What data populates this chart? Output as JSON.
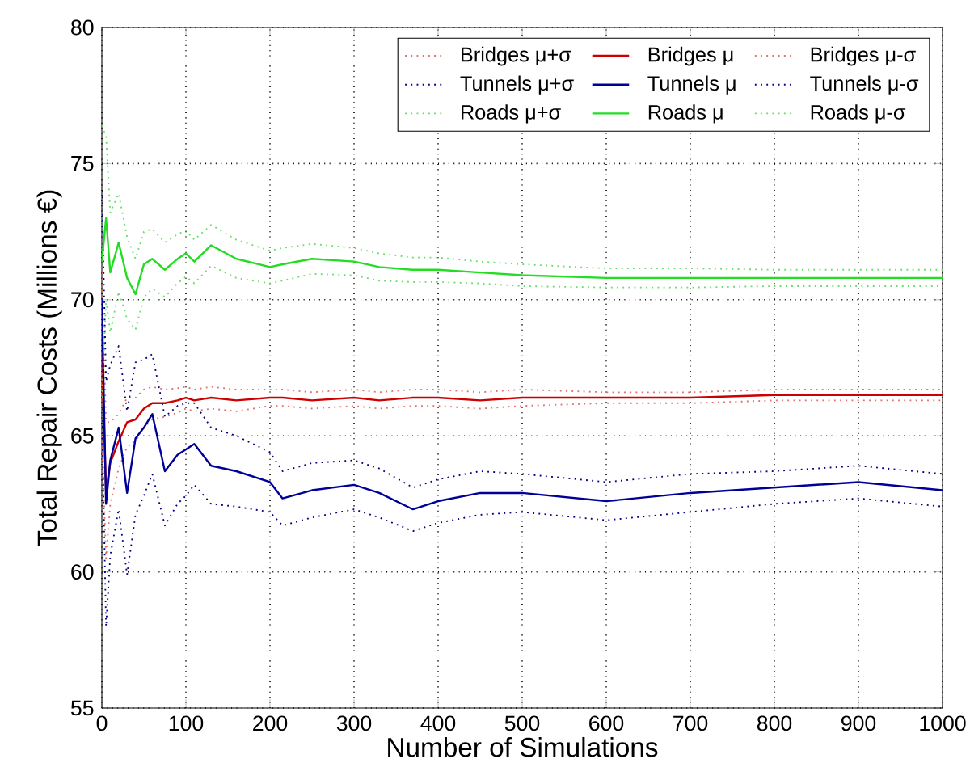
{
  "chart_data": {
    "type": "line",
    "xlabel": "Number of Simulations",
    "ylabel": "Total Repair Costs (Millions €)",
    "x": [
      0,
      5,
      10,
      20,
      30,
      40,
      50,
      60,
      75,
      90,
      100,
      110,
      130,
      160,
      200,
      215,
      250,
      300,
      330,
      370,
      400,
      450,
      500,
      600,
      700,
      800,
      900,
      1000
    ],
    "xlim": [
      0,
      1000
    ],
    "ylim": [
      55,
      80
    ],
    "xticks": [
      0,
      100,
      200,
      300,
      400,
      500,
      600,
      700,
      800,
      900,
      1000
    ],
    "yticks": [
      55,
      60,
      65,
      70,
      75,
      80
    ],
    "grid": true,
    "legend": "top right",
    "marker": "none",
    "series": [
      {
        "name": "Bridges μ+σ",
        "color": "#e07070",
        "line_style": "dotted",
        "values": [
          71,
          65.5,
          65.5,
          65.8,
          66.4,
          66.4,
          66.7,
          66.8,
          66.7,
          66.75,
          66.8,
          66.7,
          66.8,
          66.7,
          66.7,
          66.7,
          66.6,
          66.7,
          66.6,
          66.7,
          66.7,
          66.6,
          66.7,
          66.6,
          66.6,
          66.7,
          66.7,
          66.7
        ]
      },
      {
        "name": "Bridges μ",
        "color": "#cc0000",
        "line_style": "solid",
        "values": [
          68,
          63,
          64,
          64.8,
          65.5,
          65.6,
          66,
          66.2,
          66.2,
          66.3,
          66.4,
          66.3,
          66.4,
          66.3,
          66.4,
          66.4,
          66.3,
          66.4,
          66.3,
          66.4,
          66.4,
          66.3,
          66.4,
          66.4,
          66.4,
          66.5,
          66.5,
          66.5
        ]
      },
      {
        "name": "Bridges μ-σ",
        "color": "#e07070",
        "line_style": "dotted",
        "values": [
          65,
          60.5,
          62.5,
          63.8,
          64.6,
          64.8,
          65.3,
          65.6,
          65.7,
          65.85,
          66,
          65.9,
          66,
          65.9,
          66.1,
          66.1,
          66,
          66.1,
          66,
          66.1,
          66.1,
          66,
          66.1,
          66.2,
          66.2,
          66.3,
          66.3,
          66.3
        ]
      },
      {
        "name": "Tunnels μ+σ",
        "color": "#000080",
        "line_style": "dotted",
        "values": [
          74,
          67,
          67.6,
          68.3,
          65.9,
          67.7,
          67.8,
          68,
          65.7,
          66.1,
          66.2,
          66.2,
          65.3,
          65,
          64.4,
          63.7,
          64,
          64.1,
          63.8,
          63.1,
          63.4,
          63.7,
          63.6,
          63.3,
          63.6,
          63.7,
          63.9,
          63.6
        ]
      },
      {
        "name": "Tunnels μ",
        "color": "#000099",
        "line_style": "solid",
        "values": [
          70,
          62.5,
          64.1,
          65.3,
          62.9,
          64.9,
          65.3,
          65.8,
          63.7,
          64.3,
          64.5,
          64.7,
          63.9,
          63.7,
          63.3,
          62.7,
          63,
          63.2,
          62.9,
          62.3,
          62.6,
          62.9,
          62.9,
          62.6,
          62.9,
          63.1,
          63.3,
          63
        ]
      },
      {
        "name": "Tunnels μ-σ",
        "color": "#000080",
        "line_style": "dotted",
        "values": [
          66,
          58,
          60.6,
          62.3,
          59.9,
          62.1,
          62.8,
          63.6,
          61.7,
          62.5,
          62.8,
          63.2,
          62.5,
          62.4,
          62.2,
          61.7,
          62,
          62.3,
          62,
          61.5,
          61.8,
          62.1,
          62.2,
          61.9,
          62.2,
          62.5,
          62.7,
          62.4
        ]
      },
      {
        "name": "Roads μ+σ",
        "color": "#66dd66",
        "line_style": "dotted",
        "values": [
          76.4,
          76,
          73.2,
          73.9,
          72.3,
          71.5,
          72.5,
          72.6,
          72.1,
          72.4,
          72.55,
          72.2,
          72.75,
          72.2,
          71.8,
          71.9,
          72.05,
          71.9,
          71.7,
          71.55,
          71.55,
          71.4,
          71.3,
          71.15,
          71.15,
          71.1,
          71.1,
          71.1
        ]
      },
      {
        "name": "Roads μ",
        "color": "#22dd22",
        "line_style": "solid",
        "values": [
          71.4,
          73,
          71,
          72.1,
          70.8,
          70.2,
          71.3,
          71.5,
          71.1,
          71.5,
          71.7,
          71.4,
          72,
          71.5,
          71.2,
          71.3,
          71.5,
          71.4,
          71.2,
          71.1,
          71.1,
          71,
          70.9,
          70.8,
          70.8,
          70.8,
          70.8,
          70.8
        ]
      },
      {
        "name": "Roads μ-σ",
        "color": "#66dd66",
        "line_style": "dotted",
        "values": [
          66.4,
          70,
          68.8,
          70.3,
          69.3,
          68.9,
          70.1,
          70.4,
          70.1,
          70.6,
          70.85,
          70.6,
          71.25,
          70.8,
          70.6,
          70.7,
          70.95,
          70.9,
          70.7,
          70.65,
          70.65,
          70.6,
          70.5,
          70.45,
          70.45,
          70.5,
          70.5,
          70.5
        ]
      }
    ]
  }
}
